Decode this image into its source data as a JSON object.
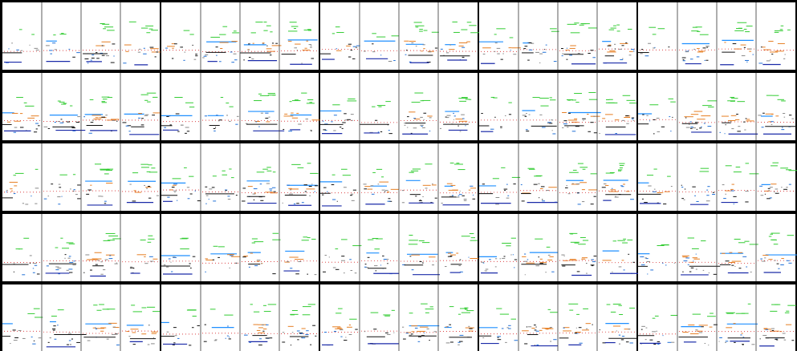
{
  "grid": {
    "rows": 5,
    "cols": 5,
    "sub_cols": 4,
    "seeds": [
      [
        11,
        23,
        37,
        41,
        53
      ],
      [
        61,
        73,
        89,
        97,
        101
      ],
      [
        113,
        127,
        131,
        139,
        149
      ],
      [
        151,
        163,
        173,
        181,
        191
      ],
      [
        193,
        197,
        211,
        223,
        227
      ]
    ]
  },
  "colors": {
    "background": "#000000",
    "panel": "#ffffff",
    "sub_divider": "#333333",
    "green": "#33cc33",
    "light_blue": "#1f8fff",
    "blue": "#1f6fd6",
    "navy": "#1a2aa8",
    "orange": "#e67e22",
    "red": "#d62728",
    "black": "#111111",
    "gray": "#888888"
  }
}
